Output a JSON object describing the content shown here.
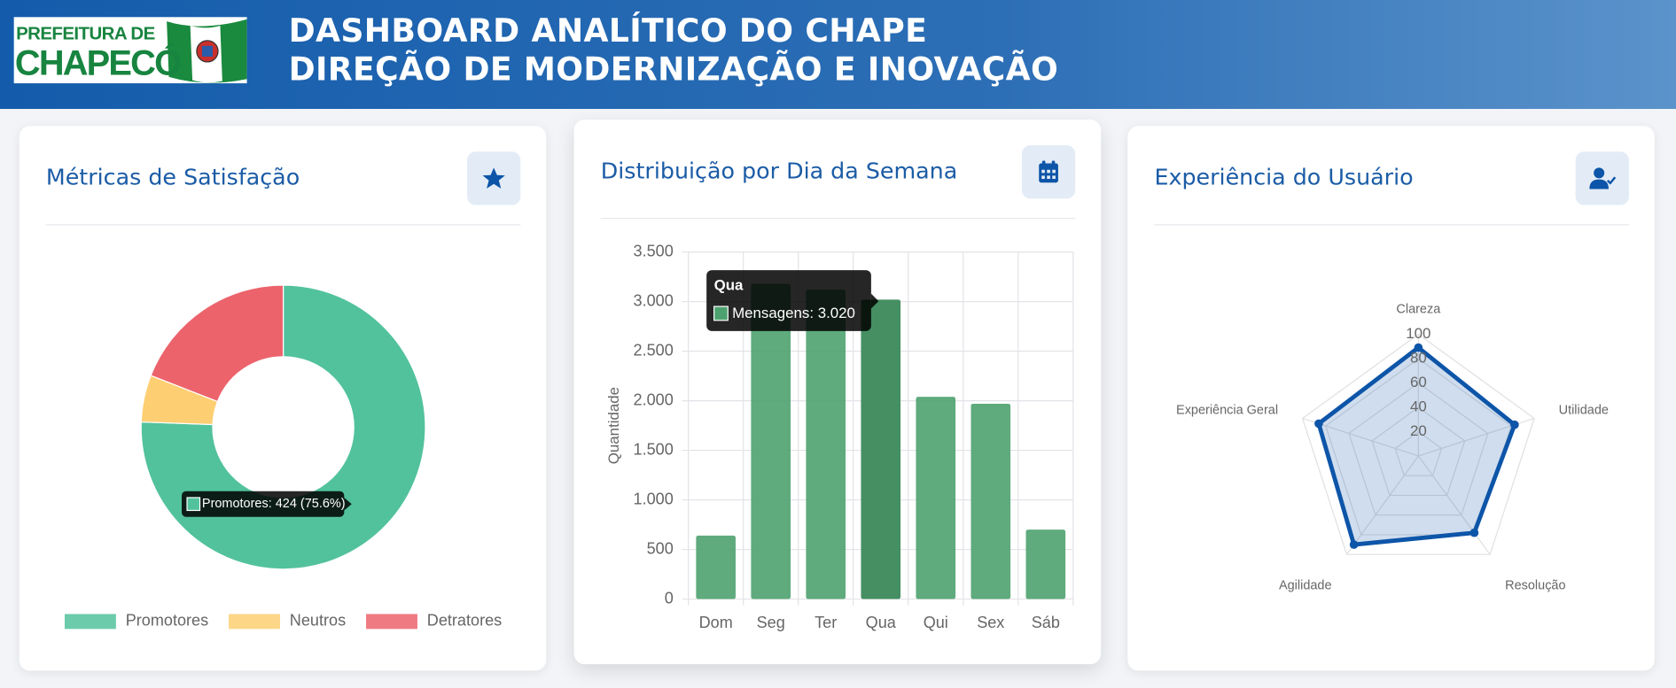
{
  "header": {
    "logo_top": "PREFEITURA DE",
    "logo_bottom": "CHAPECÓ",
    "title_line1": "DASHBOARD ANALÍTICO DO CHAPE",
    "title_line2": "DIREÇÃO DE MODERNIZAÇÃO E INOVAÇÃO"
  },
  "chart_data": [
    {
      "type": "doughnut",
      "title": "Métricas de Satisfação",
      "categories": [
        "Promotores",
        "Neutros",
        "Detratores"
      ],
      "values": [
        424,
        30,
        107
      ],
      "colors": [
        "#52c29c",
        "#fdcf72",
        "#ec636c"
      ],
      "legend": "bottom",
      "tooltip": "Promotores: 424 (75.6%)"
    },
    {
      "type": "bar",
      "title": "Distribuição por Dia da Semana",
      "categories": [
        "Dom",
        "Seg",
        "Ter",
        "Qua",
        "Qui",
        "Sex",
        "Sáb"
      ],
      "values": [
        640,
        3180,
        3120,
        3020,
        2040,
        1970,
        700
      ],
      "color": "#4ea26f",
      "ylim": [
        0,
        3500
      ],
      "yticks": [
        0,
        500,
        {
          "value": 1000,
          "label": "1.000"
        },
        {
          "value": 1500,
          "label": "1.500"
        },
        {
          "value": 2000,
          "label": "2.000"
        },
        {
          "value": 2500,
          "label": "2.500"
        },
        {
          "value": 3000,
          "label": "3.000"
        },
        {
          "value": 3500,
          "label": "3.500"
        }
      ],
      "y_label": "Quantidade",
      "grid": true,
      "tooltip": {
        "title": "Qua",
        "text": "Mensagens: 3.020"
      }
    },
    {
      "type": "radar",
      "title": "Experiência do Usuário",
      "categories": [
        "Clareza",
        "Utilidade",
        "Resolução",
        "Agilidade",
        "Experiência Geral"
      ],
      "values": [
        89,
        83,
        78,
        90,
        86
      ],
      "color": "#0d55a8",
      "rlim": [
        0,
        100
      ],
      "rticks": [
        20,
        40,
        60,
        80,
        100
      ]
    }
  ]
}
